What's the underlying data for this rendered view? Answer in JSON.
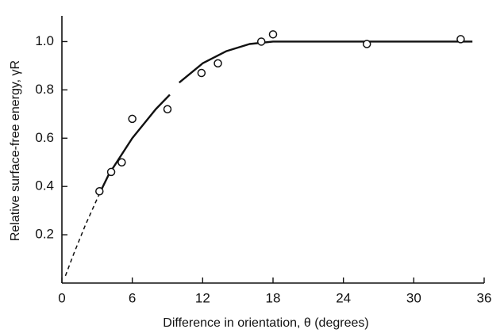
{
  "chart_data": {
    "type": "scatter",
    "xlabel": "Difference in orientation, θ (degrees)",
    "ylabel": "Relative surface-free energy, γR",
    "xlim": [
      0,
      36
    ],
    "ylim": [
      0,
      1.1
    ],
    "xticks": [
      0,
      6,
      12,
      18,
      24,
      30,
      36
    ],
    "yticks": [
      0.2,
      0.4,
      0.6,
      0.8,
      {
        "value": 1,
        "label": "1.0"
      }
    ],
    "color": "#111111",
    "series": [
      {
        "style": "dashed",
        "x": [
          0.3,
          1,
          2,
          3.2
        ],
        "values": [
          0.03,
          0.12,
          0.24,
          0.37
        ]
      },
      {
        "style": "solid",
        "x": [
          3.2,
          4,
          6,
          8,
          9.2,
          9.6,
          10,
          12,
          14,
          16,
          18,
          24,
          30,
          35
        ],
        "values": [
          0.37,
          0.45,
          0.6,
          0.72,
          0.78,
          null,
          0.83,
          0.91,
          0.96,
          0.99,
          1.0,
          1.0,
          1.0,
          1.0
        ]
      },
      {
        "style": "markers",
        "x": [
          3.2,
          4.2,
          5.1,
          6.0,
          9.0,
          11.9,
          13.3,
          17.0,
          18.0,
          26.0,
          34.0
        ],
        "values": [
          0.38,
          0.46,
          0.5,
          0.68,
          0.72,
          0.87,
          0.91,
          1.0,
          1.03,
          0.99,
          1.01
        ]
      }
    ]
  }
}
